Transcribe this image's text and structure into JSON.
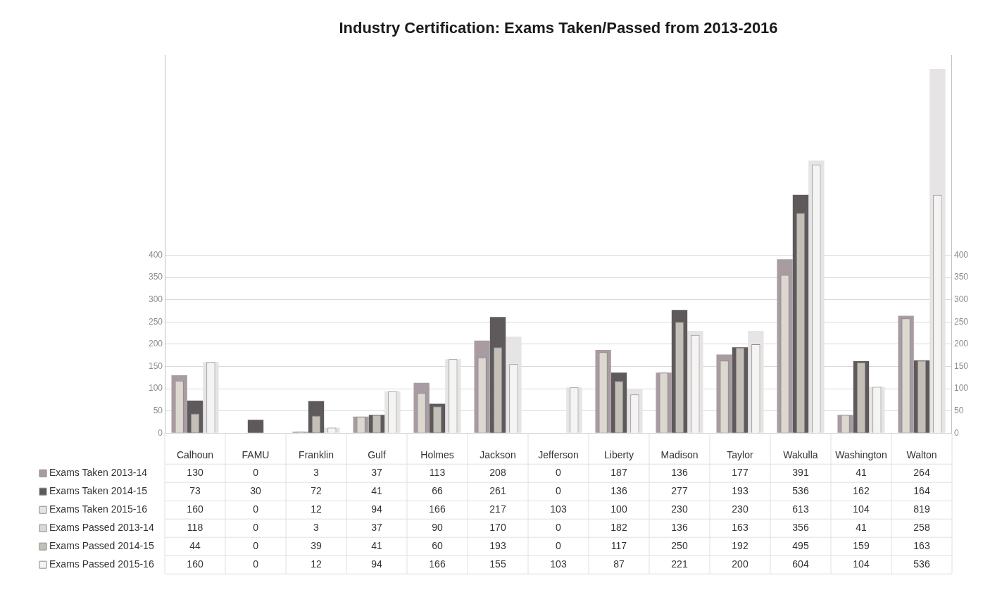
{
  "chart_data": {
    "type": "bar",
    "title": "Industry Certification: Exams Taken/Passed from 2013-2016",
    "categories": [
      "Calhoun",
      "FAMU",
      "Franklin",
      "Gulf",
      "Holmes",
      "Jackson",
      "Jefferson",
      "Liberty",
      "Madison",
      "Taylor",
      "Wakulla",
      "Washington",
      "Walton"
    ],
    "series": [
      {
        "name": "Exams Taken 2013-14",
        "color": "#a89ca2",
        "values": [
          130,
          0,
          3,
          37,
          113,
          208,
          0,
          187,
          136,
          177,
          391,
          41,
          264
        ]
      },
      {
        "name": "Exams Taken 2014-15",
        "color": "#5e5a5c",
        "values": [
          73,
          30,
          72,
          41,
          66,
          261,
          0,
          136,
          277,
          193,
          536,
          162,
          164
        ]
      },
      {
        "name": "Exams Taken 2015-16",
        "color": "#e6e4e4",
        "values": [
          160,
          0,
          12,
          94,
          166,
          217,
          103,
          100,
          230,
          230,
          613,
          104,
          819
        ]
      },
      {
        "name": "Exams Passed 2013-14",
        "color": "#dcd8d0",
        "values": [
          118,
          0,
          3,
          37,
          90,
          170,
          0,
          182,
          136,
          163,
          356,
          41,
          258
        ]
      },
      {
        "name": "Exams Passed 2014-15",
        "color": "#c4c0b8",
        "values": [
          44,
          0,
          39,
          41,
          60,
          193,
          0,
          117,
          250,
          192,
          495,
          159,
          163
        ]
      },
      {
        "name": "Exams Passed 2015-16",
        "color": "#f4f4f2",
        "values": [
          160,
          0,
          12,
          94,
          166,
          155,
          103,
          87,
          221,
          200,
          604,
          104,
          536
        ]
      }
    ],
    "ylim": [
      0,
      850
    ],
    "yticks": [
      0,
      50,
      100,
      150,
      200,
      250,
      300,
      350,
      400
    ],
    "y2lim": [
      0,
      850
    ],
    "y2ticks": [
      0,
      50,
      100,
      150,
      200,
      250,
      300,
      350,
      400
    ],
    "grid": "y",
    "data_labels": true,
    "legend": "bottom left"
  }
}
